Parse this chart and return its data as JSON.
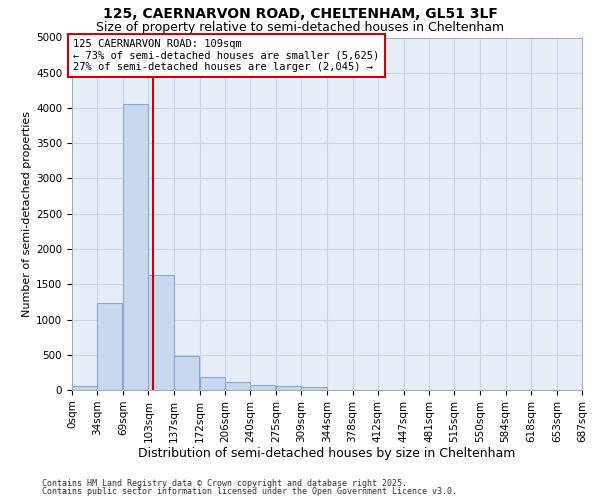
{
  "title_line1": "125, CAERNARVON ROAD, CHELTENHAM, GL51 3LF",
  "title_line2": "Size of property relative to semi-detached houses in Cheltenham",
  "xlabel": "Distribution of semi-detached houses by size in Cheltenham",
  "ylabel": "Number of semi-detached properties",
  "footer_line1": "Contains HM Land Registry data © Crown copyright and database right 2025.",
  "footer_line2": "Contains public sector information licensed under the Open Government Licence v3.0.",
  "annotation_line1": "125 CAERNARVON ROAD: 109sqm",
  "annotation_line2": "← 73% of semi-detached houses are smaller (5,625)",
  "annotation_line3": "27% of semi-detached houses are larger (2,045) →",
  "bin_edges": [
    0,
    34,
    69,
    103,
    137,
    172,
    206,
    240,
    275,
    309,
    344,
    378,
    412,
    447,
    481,
    515,
    550,
    584,
    618,
    653,
    687
  ],
  "bin_labels": [
    "0sqm",
    "34sqm",
    "69sqm",
    "103sqm",
    "137sqm",
    "172sqm",
    "206sqm",
    "240sqm",
    "275sqm",
    "309sqm",
    "344sqm",
    "378sqm",
    "412sqm",
    "447sqm",
    "481sqm",
    "515sqm",
    "550sqm",
    "584sqm",
    "618sqm",
    "653sqm",
    "687sqm"
  ],
  "bar_heights": [
    50,
    1230,
    4050,
    1630,
    480,
    190,
    110,
    70,
    55,
    45,
    0,
    0,
    0,
    0,
    0,
    0,
    0,
    0,
    0,
    0
  ],
  "bar_color": "#c8d8ee",
  "bar_edge_color": "#88aad0",
  "vline_color": "#cc0000",
  "vline_x": 109,
  "ylim": [
    0,
    5000
  ],
  "yticks": [
    0,
    500,
    1000,
    1500,
    2000,
    2500,
    3000,
    3500,
    4000,
    4500,
    5000
  ],
  "grid_color": "#c8d4e8",
  "bg_color": "#ffffff",
  "plot_bg_color": "#e8eef8",
  "annotation_box_color": "#cc0000",
  "title_fontsize": 10,
  "subtitle_fontsize": 9,
  "annotation_fontsize": 7.5,
  "ylabel_fontsize": 8,
  "xlabel_fontsize": 9,
  "tick_fontsize": 7.5,
  "footer_fontsize": 6
}
